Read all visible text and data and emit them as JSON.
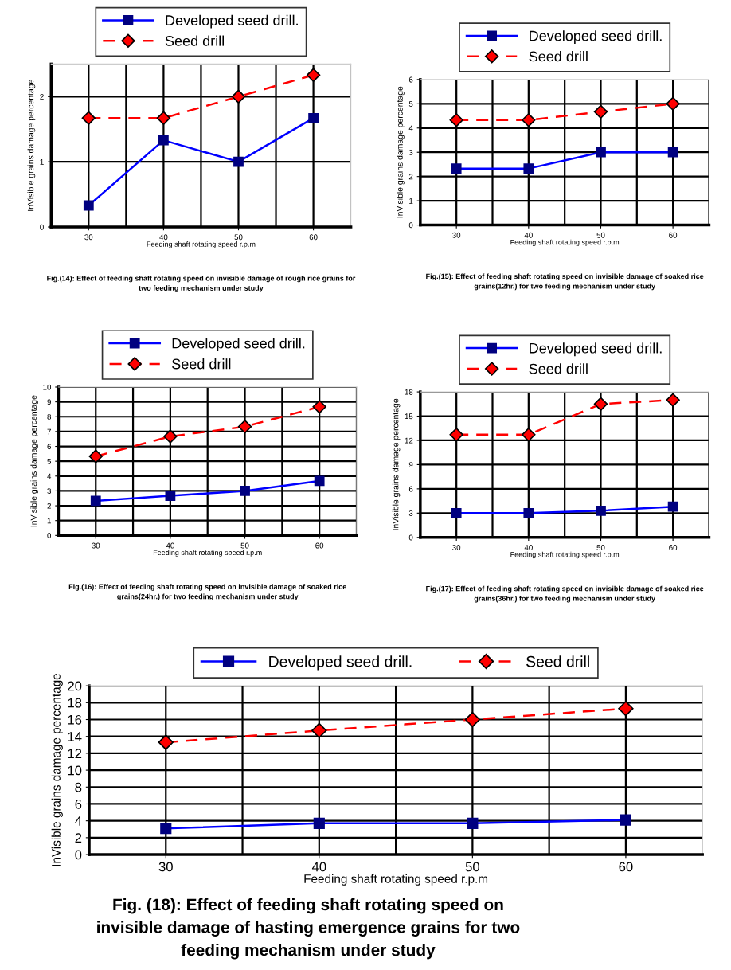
{
  "chart_data": [
    {
      "type": "line",
      "categories": [
        "30",
        "40",
        "50",
        "60"
      ],
      "xlabel": "Feeding shaft rotating speed r.p.m",
      "ylabel": "InVisible grains damage percentage",
      "ylim": [
        0,
        2.5
      ],
      "yticks": [
        0,
        1,
        2
      ],
      "grid": true,
      "legend": "top",
      "series": [
        {
          "name": "Developed seed drill.",
          "color": "#0000ff",
          "marker": "square",
          "line_style": "solid",
          "values": [
            0.33,
            1.33,
            1.0,
            1.67
          ]
        },
        {
          "name": "Seed drill",
          "color": "#ff0000",
          "marker": "diamond",
          "line_style": "dashed",
          "values": [
            1.67,
            1.67,
            2.0,
            2.33
          ]
        }
      ],
      "annotations": [
        "Fig.(14): Effect of feeding shaft rotating speed on invisible damage of rough rice grains for two feeding mechanism under study"
      ]
    },
    {
      "type": "line",
      "categories": [
        "30",
        "40",
        "50",
        "60"
      ],
      "xlabel": "Feeding shaft rotating speed r.p.m",
      "ylabel": "InVisible grains damage percentage",
      "ylim": [
        0,
        6
      ],
      "yticks": [
        0,
        1,
        2,
        3,
        4,
        5,
        6
      ],
      "grid": true,
      "legend": "top",
      "series": [
        {
          "name": "Developed seed drill.",
          "color": "#0000ff",
          "marker": "square",
          "line_style": "solid",
          "values": [
            2.33,
            2.33,
            3.0,
            3.0
          ]
        },
        {
          "name": "Seed drill",
          "color": "#ff0000",
          "marker": "diamond",
          "line_style": "dashed",
          "values": [
            4.33,
            4.33,
            4.67,
            5.0
          ]
        }
      ],
      "annotations": [
        "Fig.(15): Effect of feeding shaft rotating speed on invisible damage of soaked rice grains(12hr.) for two feeding mechanism under study"
      ]
    },
    {
      "type": "line",
      "categories": [
        "30",
        "40",
        "50",
        "60"
      ],
      "xlabel": "Feeding shaft rotating speed r.p.m",
      "ylabel": "InVisible grains damage percentage",
      "ylim": [
        0,
        10
      ],
      "yticks": [
        0,
        1,
        2,
        3,
        4,
        5,
        6,
        7,
        8,
        9,
        10
      ],
      "grid": true,
      "legend": "top",
      "series": [
        {
          "name": "Developed seed drill.",
          "color": "#0000ff",
          "marker": "square",
          "line_style": "solid",
          "values": [
            2.33,
            2.67,
            3.0,
            3.67
          ]
        },
        {
          "name": "Seed drill",
          "color": "#ff0000",
          "marker": "diamond",
          "line_style": "dashed",
          "values": [
            5.33,
            6.67,
            7.33,
            8.67
          ]
        }
      ],
      "annotations": [
        "Fig.(16): Effect of feeding shaft rotating speed on invisible damage of soaked rice grains(24hr.) for two feeding mechanism under study"
      ]
    },
    {
      "type": "line",
      "categories": [
        "30",
        "40",
        "50",
        "60"
      ],
      "xlabel": "Feeding shaft rotating speed r.p.m",
      "ylabel": "InVisible grains damage percentage",
      "ylim": [
        0,
        18
      ],
      "yticks": [
        0,
        3,
        6,
        9,
        12,
        15,
        18
      ],
      "grid": true,
      "legend": "top",
      "series": [
        {
          "name": "Developed seed drill.",
          "color": "#0000ff",
          "marker": "square",
          "line_style": "solid",
          "values": [
            3.0,
            3.0,
            3.3,
            3.8
          ]
        },
        {
          "name": "Seed drill",
          "color": "#ff0000",
          "marker": "diamond",
          "line_style": "dashed",
          "values": [
            12.7,
            12.7,
            16.5,
            17.0
          ]
        }
      ],
      "annotations": [
        "Fig.(17): Effect of feeding shaft rotating speed on invisible damage of soaked rice grains(36hr.) for two feeding mechanism under study"
      ]
    },
    {
      "type": "line",
      "categories": [
        "30",
        "40",
        "50",
        "60"
      ],
      "xlabel": "Feeding shaft rotating speed r.p.m",
      "ylabel": "InVisible grains damage percentage",
      "ylim": [
        0,
        20
      ],
      "yticks": [
        0,
        2,
        4,
        6,
        8,
        10,
        12,
        14,
        16,
        18,
        20
      ],
      "grid": true,
      "legend": "top",
      "series": [
        {
          "name": "Developed seed drill.",
          "color": "#0000ff",
          "marker": "square",
          "line_style": "solid",
          "values": [
            3.1,
            3.7,
            3.7,
            4.1
          ]
        },
        {
          "name": "Seed drill",
          "color": "#ff0000",
          "marker": "diamond",
          "line_style": "dashed",
          "values": [
            13.3,
            14.7,
            16.0,
            17.3
          ]
        }
      ],
      "annotations": [
        "Fig. (18): Effect of feeding shaft rotating speed on invisible damage of hasting emergence grains for two feeding mechanism under study"
      ]
    }
  ]
}
